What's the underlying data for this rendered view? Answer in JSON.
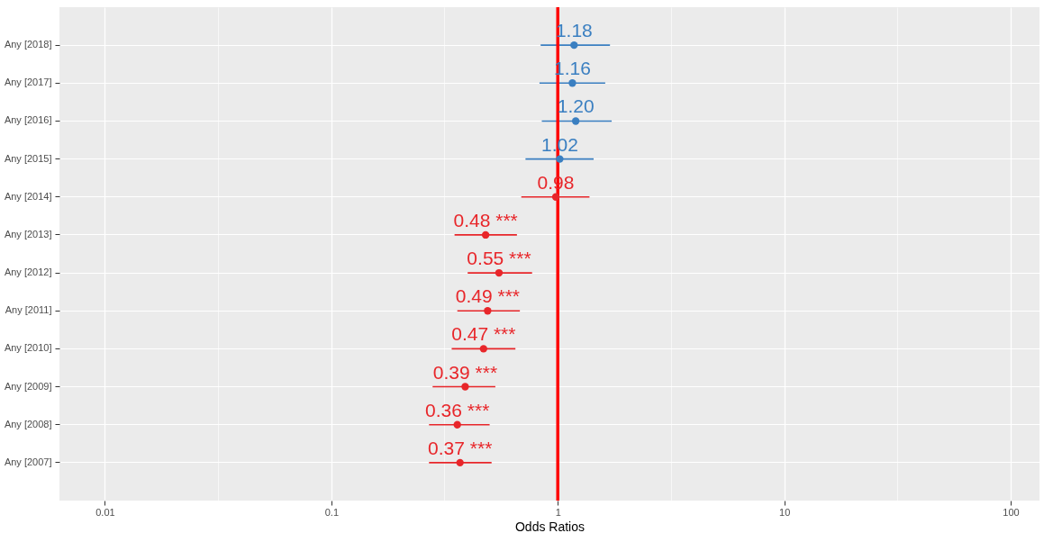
{
  "chart_data": {
    "type": "scatter",
    "orientation": "horizontal",
    "xlabel": "Odds Ratios",
    "categories": [
      "Any [2018]",
      "Any [2017]",
      "Any [2016]",
      "Any [2015]",
      "Any [2014]",
      "Any [2013]",
      "Any [2012]",
      "Any [2011]",
      "Any [2010]",
      "Any [2009]",
      "Any [2008]",
      "Any [2007]"
    ],
    "series": [
      {
        "color": "#3a7fc1",
        "values": [
          1.18,
          1.16,
          1.2,
          1.02,
          null,
          null,
          null,
          null,
          null,
          null,
          null,
          null
        ],
        "errors": [
          [
            0.84,
            1.7
          ],
          [
            0.83,
            1.62
          ],
          [
            0.85,
            1.73
          ],
          [
            0.72,
            1.44
          ],
          null,
          null,
          null,
          null,
          null,
          null,
          null,
          null
        ],
        "value_labels": [
          "1.18",
          "1.16",
          "1.20",
          "1.02",
          null,
          null,
          null,
          null,
          null,
          null,
          null,
          null
        ]
      },
      {
        "color": "#e8262a",
        "values": [
          null,
          null,
          null,
          null,
          0.98,
          0.48,
          0.55,
          0.49,
          0.47,
          0.39,
          0.36,
          0.37
        ],
        "errors": [
          null,
          null,
          null,
          null,
          [
            0.69,
            1.38
          ],
          [
            0.35,
            0.66
          ],
          [
            0.4,
            0.77
          ],
          [
            0.36,
            0.68
          ],
          [
            0.34,
            0.65
          ],
          [
            0.28,
            0.53
          ],
          [
            0.27,
            0.5
          ],
          [
            0.27,
            0.51
          ]
        ],
        "value_labels": [
          null,
          null,
          null,
          null,
          "0.98",
          "0.48 ***",
          "0.55 ***",
          "0.49 ***",
          "0.47 ***",
          "0.39 ***",
          "0.36 ***",
          "0.37 ***"
        ]
      }
    ],
    "log": "x",
    "xlim": [
      0.0063,
      134
    ],
    "xticks": [
      0.01,
      {
        "value": 0.0316,
        "label": null
      },
      0.1,
      {
        "value": 0.316,
        "label": null
      },
      1,
      {
        "value": 3.16,
        "label": null
      },
      10,
      {
        "value": 31.6,
        "label": null
      },
      100
    ],
    "grid": true,
    "marker": "circle",
    "ref_lines": [
      {
        "axis": "x",
        "value": 1,
        "color": "#ff0000",
        "line_style": "solid"
      }
    ]
  }
}
